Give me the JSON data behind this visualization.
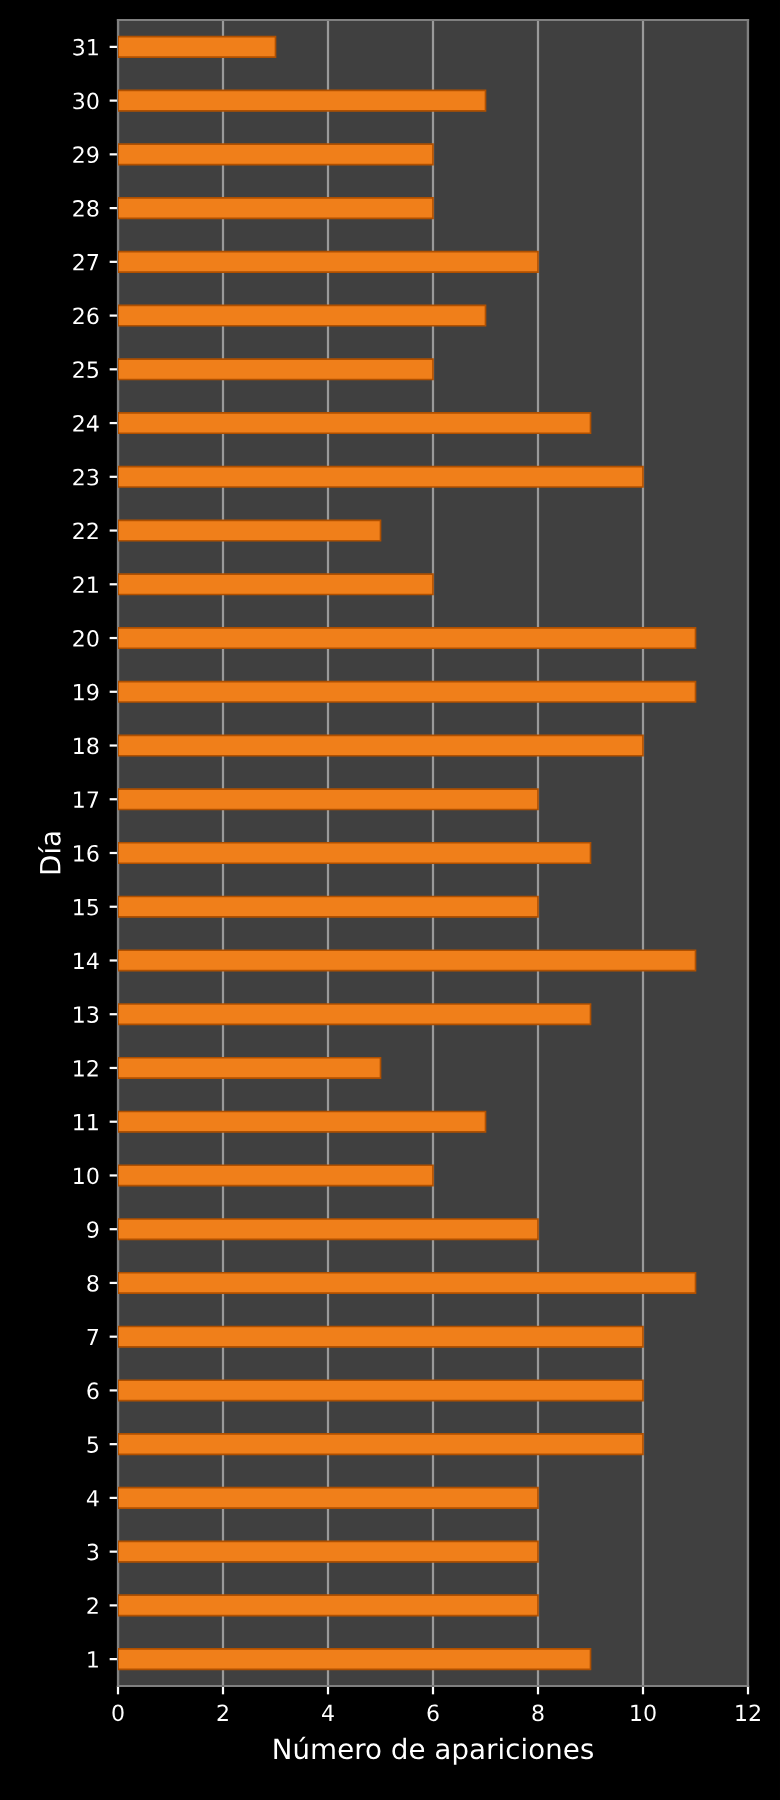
{
  "chart_data": {
    "type": "bar",
    "orientation": "horizontal",
    "xlabel": "Número de apariciones",
    "ylabel": "Día",
    "categories": [
      "31",
      "30",
      "29",
      "28",
      "27",
      "26",
      "25",
      "24",
      "23",
      "22",
      "21",
      "20",
      "19",
      "18",
      "17",
      "16",
      "15",
      "14",
      "13",
      "12",
      "11",
      "10",
      "9",
      "8",
      "7",
      "6",
      "5",
      "4",
      "3",
      "2",
      "1"
    ],
    "values": [
      3,
      7,
      6,
      6,
      8,
      7,
      6,
      9,
      10,
      5,
      6,
      11,
      11,
      10,
      8,
      9,
      8,
      11,
      9,
      5,
      7,
      6,
      8,
      11,
      10,
      10,
      10,
      8,
      8,
      8,
      9
    ],
    "color": "#f07f1a",
    "xlim": [
      0,
      12
    ],
    "xticks": [
      0,
      2,
      4,
      6,
      8,
      10,
      12
    ],
    "grid": "x"
  }
}
